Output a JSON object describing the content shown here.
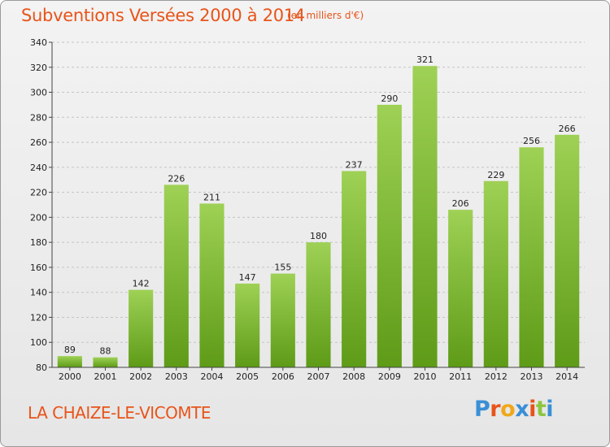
{
  "header": {
    "title": "Subventions Versées 2000 à 2014",
    "subtitle": "(en milliers d'€)"
  },
  "footer": {
    "city": "LA CHAIZE-LE-VICOMTE",
    "logo_text": "Proxiti",
    "logo_colors": [
      "#3a8fd6",
      "#e8541a",
      "#f0a81a",
      "#3a8fd6",
      "#e8541a",
      "#8cc63f",
      "#3a8fd6"
    ]
  },
  "chart_data": {
    "type": "bar",
    "title": "Subventions Versées 2000 à 2014",
    "subtitle": "(en milliers d'€)",
    "categories": [
      "2000",
      "2001",
      "2002",
      "2003",
      "2004",
      "2005",
      "2006",
      "2007",
      "2008",
      "2009",
      "2010",
      "2011",
      "2012",
      "2013",
      "2014"
    ],
    "values": [
      89,
      88,
      142,
      226,
      211,
      147,
      155,
      180,
      237,
      290,
      321,
      206,
      229,
      256,
      266
    ],
    "ylim": [
      80,
      340
    ],
    "yticks": [
      80,
      100,
      120,
      140,
      160,
      180,
      200,
      220,
      240,
      260,
      280,
      300,
      320,
      340
    ],
    "grid": true,
    "bar_color_top": "#9ed155",
    "bar_color_bottom": "#5e9b17"
  }
}
